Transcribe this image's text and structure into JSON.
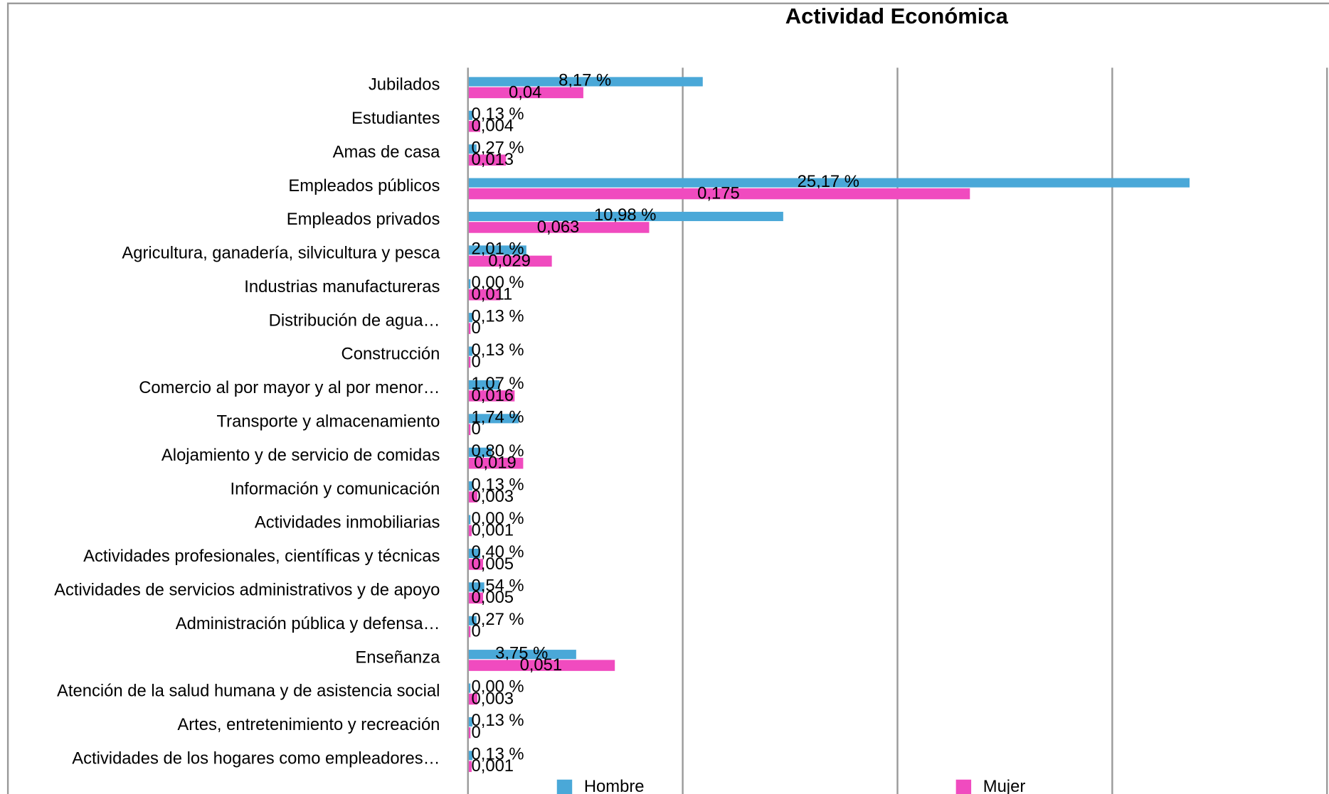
{
  "chart_data": {
    "type": "hbar",
    "title": "Actividad Económica",
    "categories": [
      "Jubilados",
      "Estudiantes",
      "Amas de casa",
      "Empleados públicos",
      "Empleados privados",
      "Agricultura, ganadería,  silvicultura y pesca",
      "Industrias manufactureras",
      "Distribución de agua…",
      "Construcción",
      "Comercio al por mayor y al por menor…",
      "Transporte y almacenamiento",
      "Alojamiento y de servicio de comidas",
      "Información y comunicación",
      "Actividades inmobiliarias",
      "Actividades profesionales, científicas y técnicas",
      "Actividades de servicios administrativos y de apoyo",
      "Administración pública y defensa…",
      "Enseñanza",
      "Atención de la salud humana y de asistencia social",
      "Artes, entretenimiento y recreación",
      "Actividades de los hogares como empleadores…"
    ],
    "series": [
      {
        "name": "Hombre",
        "color": "#4aa8d8",
        "values": [
          8.17,
          0.13,
          0.27,
          25.17,
          10.98,
          2.01,
          0.0,
          0.13,
          0.13,
          1.07,
          1.74,
          0.8,
          0.13,
          0.0,
          0.4,
          0.54,
          0.27,
          3.75,
          0.0,
          0.13,
          0.13
        ],
        "value_labels": [
          "8,17 %",
          "0,13 %",
          "0,27 %",
          "25,17 %",
          "10,98 %",
          "2,01 %",
          "0,00 %",
          "0,13 %",
          "0,13 %",
          "1,07 %",
          "1,74 %",
          "0,80 %",
          "0,13 %",
          "0,00 %",
          "0,40 %",
          "0,54 %",
          "0,27 %",
          "3,75 %",
          "0,00 %",
          "0,13 %",
          "0,13 %"
        ]
      },
      {
        "name": "Mujer",
        "color": "#f04bbf",
        "axis": "x2",
        "values": [
          0.04,
          0.004,
          0.013,
          0.175,
          0.063,
          0.029,
          0.011,
          0,
          0,
          0.016,
          0,
          0.019,
          0.003,
          0.001,
          0.005,
          0.005,
          0,
          0.051,
          0.003,
          0,
          0.001
        ],
        "value_labels": [
          "0,04",
          "0,004",
          "0,013",
          "0,175",
          "0,063",
          "0,029",
          "0,011",
          "0",
          "0",
          "0,016",
          "0",
          "0,019",
          "0,003",
          "0,001",
          "0,005",
          "0,005",
          "0",
          "0,051",
          "0,003",
          "0",
          "0,001"
        ]
      }
    ],
    "xlim": [
      0,
      30
    ],
    "xticks": [
      0,
      7.5,
      15,
      22.5,
      30
    ],
    "x2lim": [
      0,
      0.3
    ],
    "grid": true,
    "legend": "bottom"
  }
}
